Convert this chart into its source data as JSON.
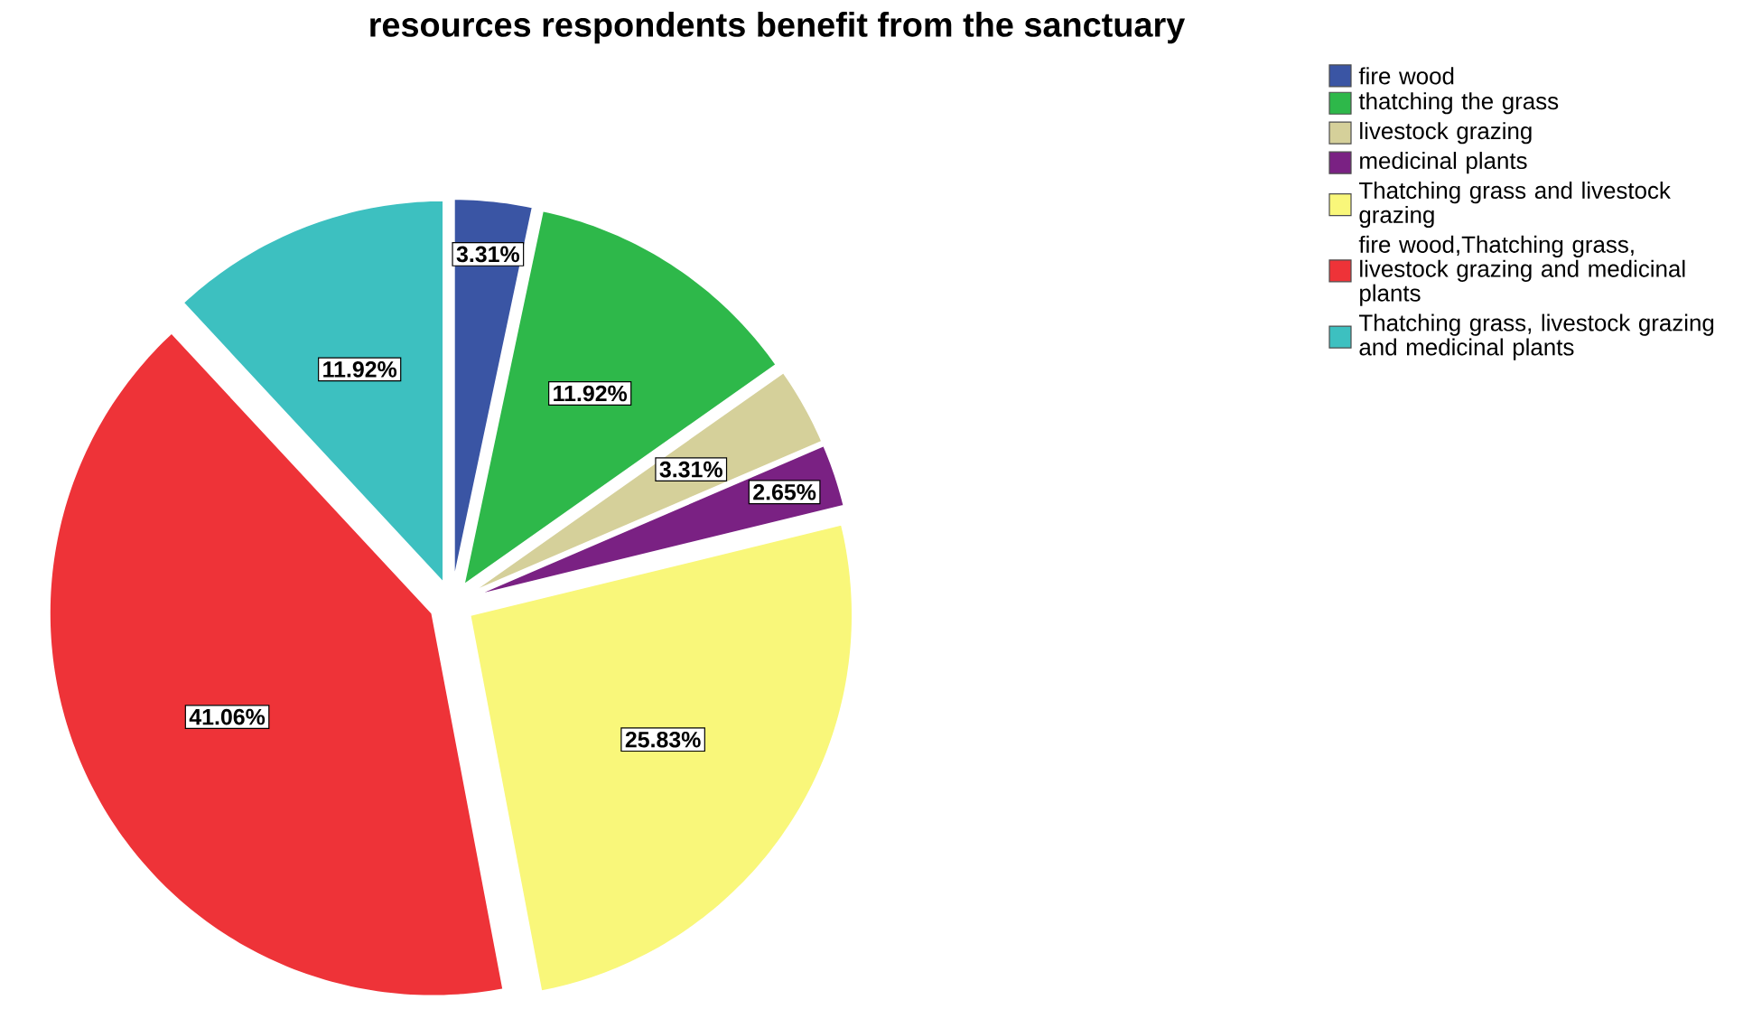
{
  "chart_data": {
    "type": "pie",
    "title": "resources respondents benefit from the sanctuary",
    "categories": [
      "fire wood",
      "thatching the grass",
      "livestock grazing",
      "medicinal plants",
      "Thatching grass and livestock grazing",
      "fire wood,Thatching grass, livestock grazing and medicinal plants",
      "Thatching grass, livestock grazing and medicinal plants"
    ],
    "values": [
      3.31,
      11.92,
      3.31,
      2.65,
      25.83,
      41.06,
      11.92
    ],
    "value_labels": [
      "3.31%",
      "11.92%",
      "3.31%",
      "2.65%",
      "25.83%",
      "41.06%",
      "11.92%"
    ],
    "colors": [
      "#3a55a4",
      "#2eb84a",
      "#d5d09a",
      "#7a2183",
      "#f9f77a",
      "#ee3338",
      "#3dc0c0"
    ],
    "legend": "right"
  }
}
